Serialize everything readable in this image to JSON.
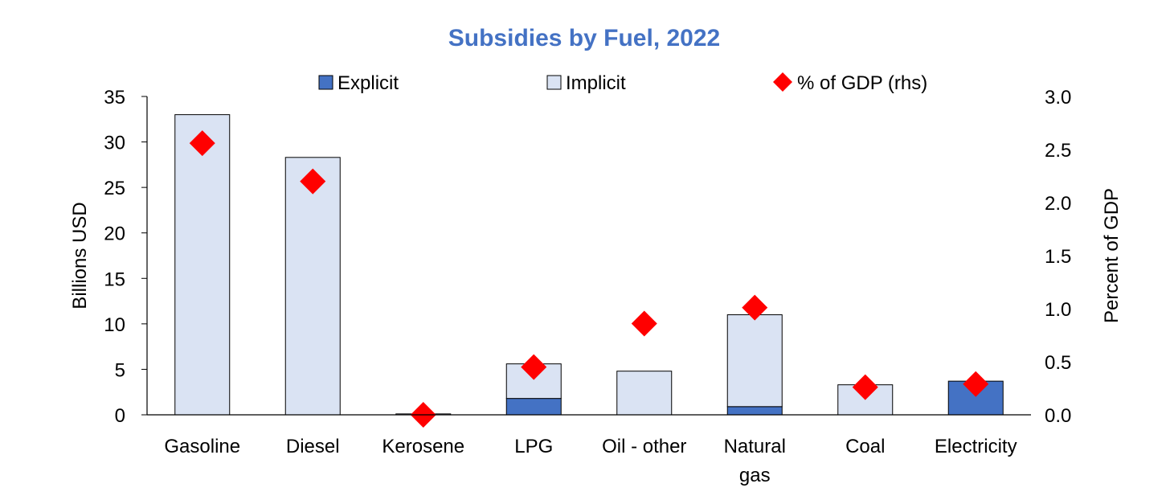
{
  "chart_data": {
    "type": "bar",
    "title": "Subsidies by Fuel, 2022",
    "categories": [
      "Gasoline",
      "Diesel",
      "Kerosene",
      "LPG",
      "Oil - other",
      "Natural gas",
      "Coal",
      "Electricity"
    ],
    "category_lines": [
      [
        "Gasoline"
      ],
      [
        "Diesel"
      ],
      [
        "Kerosene"
      ],
      [
        "LPG"
      ],
      [
        "Oil - other"
      ],
      [
        "Natural",
        "gas"
      ],
      [
        "Coal"
      ],
      [
        "Electricity"
      ]
    ],
    "stacked": true,
    "series": [
      {
        "name": "Explicit",
        "axis": "left",
        "kind": "bar",
        "color": "#4472C4",
        "values": [
          0,
          0,
          0,
          1.8,
          0,
          0.9,
          0,
          3.7
        ]
      },
      {
        "name": "Implicit",
        "axis": "left",
        "kind": "bar",
        "color": "#DAE3F3",
        "values": [
          33.0,
          28.3,
          0.1,
          3.8,
          4.8,
          10.1,
          3.3,
          0
        ]
      },
      {
        "name": "% of GDP (rhs)",
        "axis": "right",
        "kind": "marker",
        "marker": "diamond",
        "color": "#FF0000",
        "values": [
          2.56,
          2.2,
          0.0,
          0.45,
          0.86,
          1.01,
          0.26,
          0.29
        ]
      }
    ],
    "ylabel": "Billions USD",
    "ylim": [
      0,
      35
    ],
    "yticks": [
      "0",
      "5",
      "10",
      "15",
      "20",
      "25",
      "30",
      "35"
    ],
    "y2label": "Percent of GDP",
    "y2lim": [
      0,
      3.0
    ],
    "y2ticks": [
      "0.0",
      "0.5",
      "1.0",
      "1.5",
      "2.0",
      "2.5",
      "3.0"
    ],
    "grid": false,
    "legend_position": "top"
  }
}
